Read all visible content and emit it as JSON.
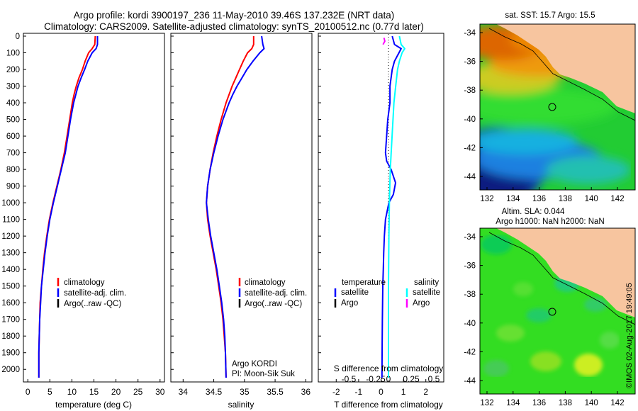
{
  "header": {
    "line1": "Argo profile: kordi 3900197_236 11-May-2010 39.46S 137.232E (NRT data)",
    "line2": "Climatology: CARS2009. Satellite-adjusted climatology: synTS_20100512.nc (0.77d later)"
  },
  "colors": {
    "climatology": "#ff0000",
    "satellite": "#0000ff",
    "argo": "#000000",
    "sat_salinity": "#00ffff",
    "argo_salinity": "#ff00ff"
  },
  "depth_ticks": [
    "0",
    "100",
    "200",
    "300",
    "400",
    "500",
    "600",
    "700",
    "800",
    "900",
    "1000",
    "1100",
    "1200",
    "1300",
    "1400",
    "1500",
    "1600",
    "1700",
    "1800",
    "1900",
    "2000"
  ],
  "legend_profile": {
    "climatology": "climatology",
    "satellite": "satellite-adj. clim.",
    "argo": "Argo(..raw -QC)"
  },
  "legend_diff": {
    "temperature_heading": "temperature",
    "salinity_heading": "salinity",
    "satellite": "satellite",
    "argo": "Argo"
  },
  "float_note": {
    "line1": "Argo KORDI",
    "line2": "PI: Moon-Sik Suk"
  },
  "map_top": {
    "title": "sat. SST: 15.7 Argo: 15.5",
    "lat_ticks": [
      "-34",
      "-36",
      "-38",
      "-40",
      "-42",
      "-44"
    ],
    "lon_ticks": [
      "132",
      "134",
      "136",
      "138",
      "140",
      "142"
    ]
  },
  "map_bottom": {
    "title_line1": "Altim. SLA: 0.044",
    "title_line2": "Argo h1000: NaN h2000: NaN",
    "lat_ticks": [
      "-34",
      "-36",
      "-38",
      "-40",
      "-42",
      "-44"
    ],
    "lon_ticks": [
      "132",
      "134",
      "136",
      "138",
      "140",
      "142"
    ]
  },
  "timestamp": "©IMOS 02-Aug-2017 19:49:05",
  "chart_data": [
    {
      "type": "line",
      "panel": "temperature",
      "xlabel": "temperature (deg C)",
      "xlim": [
        -1,
        31
      ],
      "ylim": [
        2050,
        0
      ],
      "x_ticks": [
        "0",
        "5",
        "10",
        "15",
        "20",
        "25",
        "30"
      ],
      "series": [
        {
          "name": "climatology",
          "x": [
            15.3,
            15.2,
            14.6,
            13.8,
            13.0,
            12.4,
            11.6,
            11.0,
            10.5,
            10.1,
            9.5,
            8.9,
            8.3,
            7.5,
            6.6,
            5.7,
            4.9,
            4.3,
            3.8,
            3.4,
            3.1,
            2.8,
            2.7,
            2.6,
            2.5,
            2.5
          ],
          "y": [
            0,
            50,
            75,
            100,
            150,
            200,
            250,
            300,
            350,
            400,
            500,
            600,
            700,
            800,
            900,
            1000,
            1100,
            1200,
            1300,
            1400,
            1500,
            1600,
            1700,
            1800,
            1900,
            2050
          ]
        },
        {
          "name": "satellite-adj. clim.",
          "x": [
            15.8,
            15.8,
            15.5,
            14.6,
            13.6,
            12.9,
            12.1,
            11.4,
            10.9,
            10.4,
            9.7,
            9.1,
            8.5,
            7.6,
            6.7,
            5.8,
            5.0,
            4.4,
            3.9,
            3.5,
            3.1,
            2.9,
            2.7,
            2.6,
            2.5,
            2.5
          ],
          "y": [
            0,
            50,
            75,
            100,
            150,
            200,
            250,
            300,
            350,
            400,
            500,
            600,
            700,
            800,
            900,
            1000,
            1100,
            1200,
            1300,
            1400,
            1500,
            1600,
            1700,
            1800,
            1900,
            2050
          ]
        }
      ]
    },
    {
      "type": "line",
      "panel": "salinity",
      "xlabel": "salinity",
      "xlim": [
        33.8,
        36.1
      ],
      "ylim": [
        2050,
        0
      ],
      "x_ticks": [
        "34",
        "34.5",
        "35",
        "35.5",
        "36"
      ],
      "series": [
        {
          "name": "climatology",
          "x": [
            35.15,
            35.15,
            35.12,
            35.05,
            34.98,
            34.92,
            34.86,
            34.8,
            34.75,
            34.7,
            34.62,
            34.55,
            34.49,
            34.44,
            34.4,
            34.38,
            34.4,
            34.44,
            34.49,
            34.54,
            34.58,
            34.62,
            34.65,
            34.67,
            34.69,
            34.7
          ],
          "y": [
            0,
            50,
            75,
            100,
            150,
            200,
            250,
            300,
            350,
            400,
            500,
            600,
            700,
            800,
            900,
            1000,
            1100,
            1200,
            1300,
            1400,
            1500,
            1600,
            1700,
            1800,
            1900,
            2050
          ]
        },
        {
          "name": "satellite-adj. clim.",
          "x": [
            35.28,
            35.3,
            35.32,
            35.25,
            35.14,
            35.04,
            34.96,
            34.88,
            34.81,
            34.75,
            34.65,
            34.57,
            34.5,
            34.44,
            34.4,
            34.38,
            34.41,
            34.45,
            34.5,
            34.55,
            34.59,
            34.63,
            34.66,
            34.68,
            34.69,
            34.7
          ],
          "y": [
            0,
            50,
            75,
            100,
            150,
            200,
            250,
            300,
            350,
            400,
            500,
            600,
            700,
            800,
            900,
            1000,
            1100,
            1200,
            1300,
            1400,
            1500,
            1600,
            1700,
            1800,
            1900,
            2050
          ]
        }
      ]
    },
    {
      "type": "line",
      "panel": "difference",
      "xlabel": "T difference from climatology",
      "xlabel_top": "S difference from climatology",
      "xlim": [
        -2.8,
        2.8
      ],
      "ylim": [
        2050,
        0
      ],
      "x_ticks": [
        "-2",
        "-1",
        "0",
        "1",
        "2"
      ],
      "x_ticks_s": [
        "-0.5",
        "-0.25",
        "0",
        "0.25",
        "0.5"
      ],
      "series": [
        {
          "name": "temperature satellite",
          "x": [
            0.5,
            0.6,
            0.9,
            0.8,
            0.6,
            0.5,
            0.45,
            0.4,
            0.4,
            0.3,
            0.25,
            0.2,
            0.25,
            0.45,
            0.65,
            0.55,
            0.35,
            0.2,
            0.15,
            0.12,
            0.1,
            0.08,
            0.07,
            0.06,
            0.05,
            0.04
          ],
          "y": [
            0,
            50,
            75,
            100,
            150,
            200,
            250,
            300,
            400,
            500,
            600,
            700,
            750,
            800,
            880,
            950,
            1000,
            1100,
            1200,
            1300,
            1400,
            1500,
            1600,
            1700,
            1850,
            2050
          ]
        },
        {
          "name": "salinity satellite",
          "x": [
            0.12,
            0.14,
            0.18,
            0.15,
            0.12,
            0.1,
            0.08,
            0.06,
            0.05,
            0.04,
            0.03,
            0.02,
            0.015,
            0.01,
            0.005,
            0.0,
            0.0
          ],
          "y": [
            0,
            50,
            75,
            100,
            150,
            200,
            300,
            400,
            500,
            600,
            700,
            800,
            900,
            1000,
            1200,
            1500,
            2050
          ]
        },
        {
          "name": "salinity Argo",
          "x": [
            -0.05,
            -0.04,
            -0.06
          ],
          "y": [
            10,
            30,
            50
          ]
        }
      ]
    }
  ]
}
